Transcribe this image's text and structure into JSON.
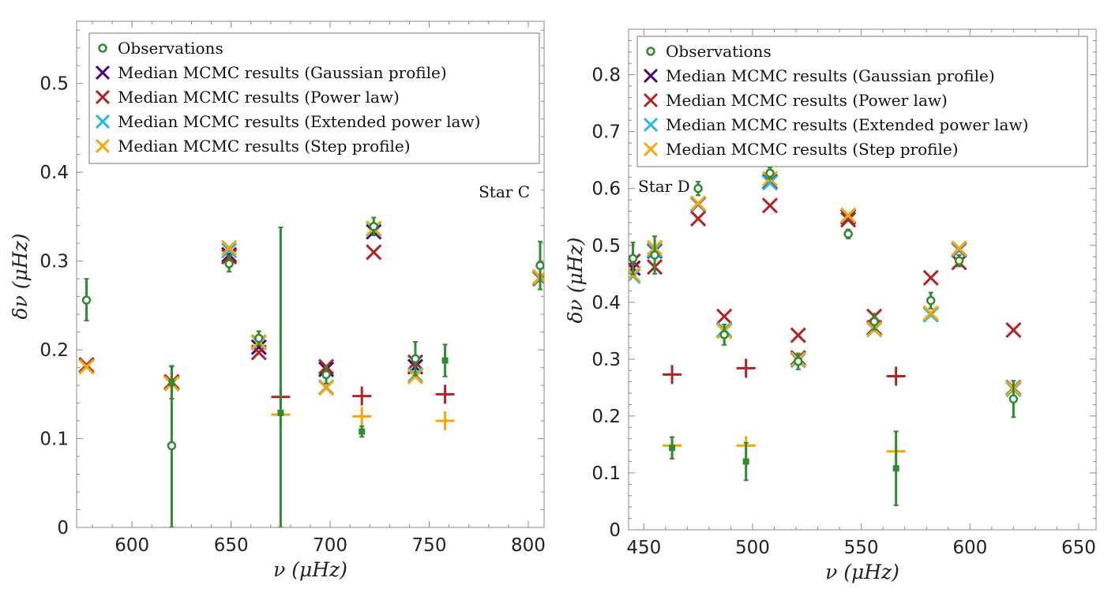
{
  "chart_data": [
    {
      "type": "scatter",
      "title": "",
      "annotation": "Star C",
      "xlabel": "ν (μHz)",
      "ylabel": "δν (μHz)",
      "xlim": [
        572,
        808
      ],
      "ylim": [
        0,
        0.57
      ],
      "x_ticks": [
        600,
        650,
        700,
        750,
        800
      ],
      "y_ticks": [
        0,
        0.1,
        0.2,
        0.3,
        0.4,
        0.5
      ],
      "x_tick_labels": [
        "600",
        "650",
        "700",
        "750",
        "800"
      ],
      "y_tick_labels": [
        "0",
        "0.1",
        "0.2",
        "0.3",
        "0.4",
        "0.5"
      ],
      "legend": [
        {
          "label": "Observations",
          "marker": "circle",
          "color": "#2e8b2e"
        },
        {
          "label": "Median MCMC results (Gaussian profile)",
          "marker": "x",
          "color": "#4b0082"
        },
        {
          "label": "Median MCMC results (Power law)",
          "marker": "x",
          "color": "#b22222"
        },
        {
          "label": "Median MCMC results (Extended power law)",
          "marker": "x",
          "color": "#1fb8e6"
        },
        {
          "label": "Median MCMC results (Step profile)",
          "marker": "x",
          "color": "#ffa500"
        }
      ],
      "legend_position": "top-left",
      "observations": [
        {
          "x": 577,
          "y": 0.256,
          "lo": 0.233,
          "hi": 0.28,
          "marker": "circle"
        },
        {
          "x": 620,
          "y": 0.092,
          "lo": 0.0,
          "hi": 0.182,
          "marker": "circle"
        },
        {
          "x": 649,
          "y": 0.297,
          "lo": 0.288,
          "hi": 0.306,
          "marker": "circle"
        },
        {
          "x": 664,
          "y": 0.213,
          "lo": 0.205,
          "hi": 0.221,
          "marker": "circle"
        },
        {
          "x": 698,
          "y": 0.172,
          "lo": 0.162,
          "hi": 0.182,
          "marker": "circle"
        },
        {
          "x": 722,
          "y": 0.339,
          "lo": 0.329,
          "hi": 0.349,
          "marker": "circle"
        },
        {
          "x": 743,
          "y": 0.19,
          "lo": 0.171,
          "hi": 0.209,
          "marker": "circle"
        },
        {
          "x": 806,
          "y": 0.295,
          "lo": 0.268,
          "hi": 0.322,
          "marker": "circle"
        },
        {
          "x": 620,
          "y": 0.163,
          "lo": 0.145,
          "hi": 0.181,
          "marker": "square"
        },
        {
          "x": 675,
          "y": 0.129,
          "lo": 0.0,
          "hi": 0.338,
          "marker": "square"
        },
        {
          "x": 716,
          "y": 0.108,
          "lo": 0.102,
          "hi": 0.114,
          "marker": "square"
        },
        {
          "x": 758,
          "y": 0.188,
          "lo": 0.17,
          "hi": 0.206,
          "marker": "square"
        }
      ],
      "series": [
        {
          "name": "Median MCMC results (Gaussian profile)",
          "color": "#4b0082",
          "points": [
            {
              "x": 577,
              "y": 0.182,
              "m": "x"
            },
            {
              "x": 620,
              "y": 0.163,
              "m": "x"
            },
            {
              "x": 649,
              "y": 0.307,
              "m": "x"
            },
            {
              "x": 664,
              "y": 0.203,
              "m": "x"
            },
            {
              "x": 698,
              "y": 0.178,
              "m": "x"
            },
            {
              "x": 722,
              "y": 0.333,
              "m": "x"
            },
            {
              "x": 743,
              "y": 0.181,
              "m": "x"
            },
            {
              "x": 806,
              "y": 0.282,
              "m": "x"
            }
          ]
        },
        {
          "name": "Median MCMC results (Power law)",
          "color": "#b22222",
          "points": [
            {
              "x": 577,
              "y": 0.183,
              "m": "x"
            },
            {
              "x": 620,
              "y": 0.164,
              "m": "x"
            },
            {
              "x": 649,
              "y": 0.305,
              "m": "x"
            },
            {
              "x": 664,
              "y": 0.197,
              "m": "x"
            },
            {
              "x": 698,
              "y": 0.181,
              "m": "x"
            },
            {
              "x": 722,
              "y": 0.31,
              "m": "x"
            },
            {
              "x": 743,
              "y": 0.186,
              "m": "x"
            },
            {
              "x": 806,
              "y": 0.28,
              "m": "x"
            },
            {
              "x": 675,
              "y": 0.147,
              "m": "+"
            },
            {
              "x": 716,
              "y": 0.148,
              "m": "+"
            },
            {
              "x": 758,
              "y": 0.15,
              "m": "+"
            }
          ]
        },
        {
          "name": "Median MCMC results (Extended power law)",
          "color": "#1fb8e6",
          "points": [
            {
              "x": 577,
              "y": 0.181,
              "m": "x"
            },
            {
              "x": 620,
              "y": 0.162,
              "m": "x"
            },
            {
              "x": 649,
              "y": 0.312,
              "m": "x"
            },
            {
              "x": 664,
              "y": 0.208,
              "m": "x"
            },
            {
              "x": 698,
              "y": 0.158,
              "m": "x"
            },
            {
              "x": 722,
              "y": 0.336,
              "m": "x"
            },
            {
              "x": 743,
              "y": 0.172,
              "m": "x"
            },
            {
              "x": 806,
              "y": 0.281,
              "m": "x"
            }
          ]
        },
        {
          "name": "Median MCMC results (Step profile)",
          "color": "#ffa500",
          "points": [
            {
              "x": 577,
              "y": 0.181,
              "m": "x"
            },
            {
              "x": 620,
              "y": 0.162,
              "m": "x"
            },
            {
              "x": 649,
              "y": 0.315,
              "m": "x"
            },
            {
              "x": 664,
              "y": 0.209,
              "m": "x"
            },
            {
              "x": 698,
              "y": 0.157,
              "m": "x"
            },
            {
              "x": 722,
              "y": 0.337,
              "m": "x"
            },
            {
              "x": 743,
              "y": 0.17,
              "m": "x"
            },
            {
              "x": 806,
              "y": 0.282,
              "m": "x"
            },
            {
              "x": 675,
              "y": 0.127,
              "m": "+"
            },
            {
              "x": 716,
              "y": 0.125,
              "m": "+"
            },
            {
              "x": 758,
              "y": 0.12,
              "m": "+"
            }
          ]
        }
      ]
    },
    {
      "type": "scatter",
      "title": "",
      "annotation": "Star D",
      "xlabel": "ν (μHz)",
      "ylabel": "δν (μHz)",
      "xlim": [
        443,
        658
      ],
      "ylim": [
        0,
        0.88
      ],
      "x_ticks": [
        450,
        500,
        550,
        600,
        650
      ],
      "y_ticks": [
        0,
        0.1,
        0.2,
        0.3,
        0.4,
        0.5,
        0.6,
        0.7,
        0.8
      ],
      "x_tick_labels": [
        "450",
        "500",
        "550",
        "600",
        "650"
      ],
      "y_tick_labels": [
        "0",
        "0.1",
        "0.2",
        "0.3",
        "0.4",
        "0.5",
        "0.6",
        "0.7",
        "0.8"
      ],
      "legend": [
        {
          "label": "Observations",
          "marker": "circle",
          "color": "#2e8b2e"
        },
        {
          "label": "Median MCMC results (Gaussian profile)",
          "marker": "x",
          "color": "#4b0082"
        },
        {
          "label": "Median MCMC results (Power law)",
          "marker": "x",
          "color": "#b22222"
        },
        {
          "label": "Median MCMC results (Extended power law)",
          "marker": "x",
          "color": "#1fb8e6"
        },
        {
          "label": "Median MCMC results (Step profile)",
          "marker": "x",
          "color": "#ffa500"
        }
      ],
      "legend_position": "top-left",
      "observations": [
        {
          "x": 445,
          "y": 0.477,
          "lo": 0.449,
          "hi": 0.505,
          "marker": "circle"
        },
        {
          "x": 455,
          "y": 0.483,
          "lo": 0.45,
          "hi": 0.516,
          "marker": "circle"
        },
        {
          "x": 475,
          "y": 0.6,
          "lo": 0.588,
          "hi": 0.612,
          "marker": "circle"
        },
        {
          "x": 487,
          "y": 0.343,
          "lo": 0.325,
          "hi": 0.361,
          "marker": "circle"
        },
        {
          "x": 508,
          "y": 0.627,
          "lo": 0.617,
          "hi": 0.637,
          "marker": "circle"
        },
        {
          "x": 521,
          "y": 0.296,
          "lo": 0.282,
          "hi": 0.31,
          "marker": "circle"
        },
        {
          "x": 544,
          "y": 0.52,
          "lo": 0.512,
          "hi": 0.528,
          "marker": "circle"
        },
        {
          "x": 556,
          "y": 0.366,
          "lo": 0.352,
          "hi": 0.38,
          "marker": "circle"
        },
        {
          "x": 582,
          "y": 0.403,
          "lo": 0.389,
          "hi": 0.417,
          "marker": "circle"
        },
        {
          "x": 595,
          "y": 0.473,
          "lo": 0.463,
          "hi": 0.483,
          "marker": "circle"
        },
        {
          "x": 620,
          "y": 0.23,
          "lo": 0.198,
          "hi": 0.262,
          "marker": "circle"
        },
        {
          "x": 463,
          "y": 0.144,
          "lo": 0.125,
          "hi": 0.163,
          "marker": "square"
        },
        {
          "x": 497,
          "y": 0.12,
          "lo": 0.087,
          "hi": 0.153,
          "marker": "square"
        },
        {
          "x": 566,
          "y": 0.108,
          "lo": 0.043,
          "hi": 0.173,
          "marker": "square"
        }
      ],
      "series": [
        {
          "name": "Median MCMC results (Gaussian profile)",
          "color": "#4b0082",
          "points": [
            {
              "x": 445,
              "y": 0.46,
              "m": "x"
            },
            {
              "x": 455,
              "y": 0.49,
              "m": "x"
            },
            {
              "x": 475,
              "y": 0.572,
              "m": "x"
            },
            {
              "x": 487,
              "y": 0.35,
              "m": "x"
            },
            {
              "x": 508,
              "y": 0.612,
              "m": "x"
            },
            {
              "x": 521,
              "y": 0.302,
              "m": "x"
            },
            {
              "x": 544,
              "y": 0.55,
              "m": "x"
            },
            {
              "x": 556,
              "y": 0.355,
              "m": "x"
            },
            {
              "x": 582,
              "y": 0.38,
              "m": "x"
            },
            {
              "x": 595,
              "y": 0.492,
              "m": "x"
            },
            {
              "x": 620,
              "y": 0.25,
              "m": "x"
            }
          ]
        },
        {
          "name": "Median MCMC results (Power law)",
          "color": "#b22222",
          "points": [
            {
              "x": 445,
              "y": 0.472,
              "m": "x"
            },
            {
              "x": 455,
              "y": 0.462,
              "m": "x"
            },
            {
              "x": 475,
              "y": 0.547,
              "m": "x"
            },
            {
              "x": 487,
              "y": 0.375,
              "m": "x"
            },
            {
              "x": 508,
              "y": 0.57,
              "m": "x"
            },
            {
              "x": 521,
              "y": 0.342,
              "m": "x"
            },
            {
              "x": 544,
              "y": 0.545,
              "m": "x"
            },
            {
              "x": 556,
              "y": 0.375,
              "m": "x"
            },
            {
              "x": 582,
              "y": 0.443,
              "m": "x"
            },
            {
              "x": 595,
              "y": 0.47,
              "m": "x"
            },
            {
              "x": 620,
              "y": 0.351,
              "m": "x"
            },
            {
              "x": 463,
              "y": 0.273,
              "m": "+"
            },
            {
              "x": 497,
              "y": 0.284,
              "m": "+"
            },
            {
              "x": 566,
              "y": 0.27,
              "m": "+"
            }
          ]
        },
        {
          "name": "Median MCMC results (Extended power law)",
          "color": "#1fb8e6",
          "points": [
            {
              "x": 445,
              "y": 0.446,
              "m": "x"
            },
            {
              "x": 455,
              "y": 0.492,
              "m": "x"
            },
            {
              "x": 475,
              "y": 0.573,
              "m": "x"
            },
            {
              "x": 487,
              "y": 0.352,
              "m": "x"
            },
            {
              "x": 508,
              "y": 0.61,
              "m": "x"
            },
            {
              "x": 521,
              "y": 0.298,
              "m": "x"
            },
            {
              "x": 544,
              "y": 0.552,
              "m": "x"
            },
            {
              "x": 556,
              "y": 0.352,
              "m": "x"
            },
            {
              "x": 582,
              "y": 0.378,
              "m": "x"
            },
            {
              "x": 595,
              "y": 0.493,
              "m": "x"
            },
            {
              "x": 620,
              "y": 0.247,
              "m": "x"
            }
          ]
        },
        {
          "name": "Median MCMC results (Step profile)",
          "color": "#ffa500",
          "points": [
            {
              "x": 445,
              "y": 0.449,
              "m": "x"
            },
            {
              "x": 455,
              "y": 0.496,
              "m": "x"
            },
            {
              "x": 475,
              "y": 0.574,
              "m": "x"
            },
            {
              "x": 487,
              "y": 0.349,
              "m": "x"
            },
            {
              "x": 508,
              "y": 0.617,
              "m": "x"
            },
            {
              "x": 521,
              "y": 0.3,
              "m": "x"
            },
            {
              "x": 544,
              "y": 0.553,
              "m": "x"
            },
            {
              "x": 556,
              "y": 0.353,
              "m": "x"
            },
            {
              "x": 582,
              "y": 0.381,
              "m": "x"
            },
            {
              "x": 595,
              "y": 0.495,
              "m": "x"
            },
            {
              "x": 620,
              "y": 0.249,
              "m": "x"
            },
            {
              "x": 463,
              "y": 0.148,
              "m": "+"
            },
            {
              "x": 497,
              "y": 0.148,
              "m": "+"
            },
            {
              "x": 566,
              "y": 0.138,
              "m": "+"
            }
          ]
        }
      ]
    }
  ]
}
